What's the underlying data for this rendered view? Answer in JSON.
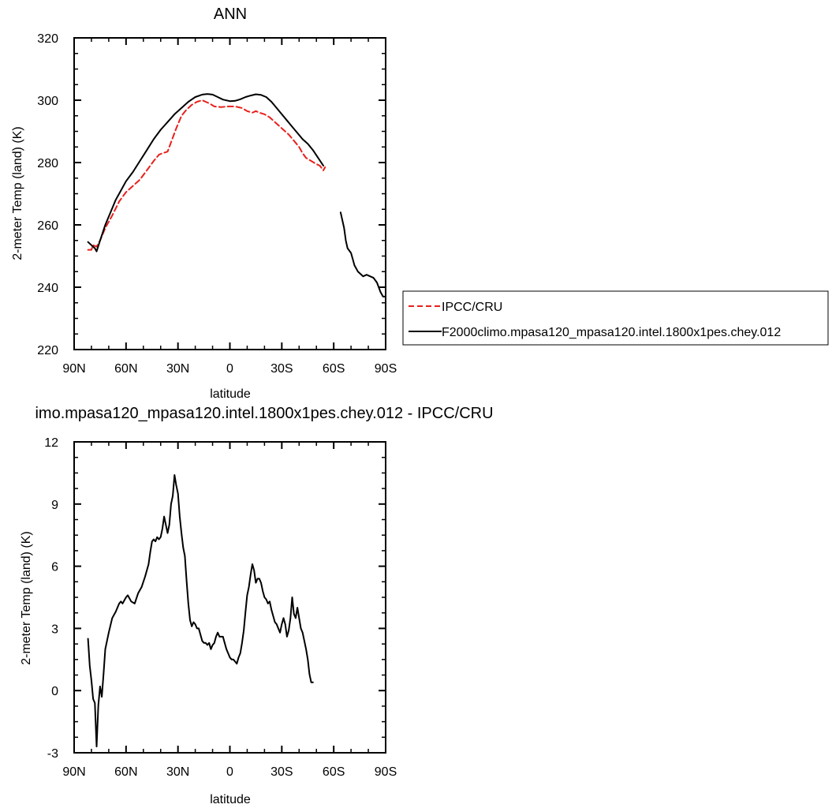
{
  "colors": {
    "obs": "#e8201c",
    "model": "#000000",
    "axis": "#000000",
    "background": "#ffffff"
  },
  "chart_data": [
    {
      "type": "line",
      "title": "ANN",
      "xlabel": "latitude",
      "ylabel": "2-meter Temp (land) (K)",
      "xlim": [
        90,
        -90
      ],
      "ylim": [
        220,
        320
      ],
      "xticks": [
        90,
        60,
        30,
        0,
        -30,
        -60,
        -90
      ],
      "xtick_labels": [
        "90N",
        "60N",
        "30N",
        "0",
        "30S",
        "60S",
        "90S"
      ],
      "yticks": [
        220,
        240,
        260,
        280,
        300,
        320
      ],
      "ytick_labels": [
        "220",
        "240",
        "260",
        "280",
        "300",
        "320"
      ],
      "grid": false,
      "legend_placement": "right, outside plot",
      "series": [
        {
          "name": "IPCC/CRU",
          "style": "dashed",
          "color": "#e8201c",
          "segments": [
            [
              [
                82,
                252
              ],
              [
                80,
                252
              ],
              [
                79,
                253.5
              ],
              [
                77,
                253
              ],
              [
                75,
                255
              ],
              [
                72,
                259
              ],
              [
                68,
                263
              ],
              [
                64,
                267.5
              ],
              [
                60,
                270.5
              ],
              [
                56,
                272.5
              ],
              [
                52,
                274.5
              ],
              [
                48,
                277.5
              ],
              [
                44,
                280.5
              ],
              [
                41,
                282.5
              ],
              [
                39,
                283
              ],
              [
                36,
                283.5
              ],
              [
                34,
                286.5
              ],
              [
                31,
                291
              ],
              [
                28,
                295
              ],
              [
                25,
                297
              ],
              [
                22,
                298.5
              ],
              [
                19,
                299.5
              ],
              [
                16,
                300
              ],
              [
                14,
                299.5
              ],
              [
                12,
                299
              ],
              [
                9,
                298
              ],
              [
                5,
                297.8
              ],
              [
                1,
                298
              ],
              [
                -3,
                298
              ],
              [
                -7,
                297.5
              ],
              [
                -10,
                296.5
              ],
              [
                -13,
                296
              ],
              [
                -15,
                296.5
              ],
              [
                -17,
                296
              ],
              [
                -20,
                295.5
              ],
              [
                -23,
                294.5
              ],
              [
                -26,
                293
              ],
              [
                -30,
                291
              ],
              [
                -34,
                289
              ],
              [
                -37,
                287
              ],
              [
                -40,
                285
              ],
              [
                -42,
                283
              ],
              [
                -44,
                281.5
              ],
              [
                -47,
                280.5
              ],
              [
                -50,
                279.5
              ],
              [
                -52,
                279
              ],
              [
                -54,
                277.5
              ],
              [
                -55,
                278.5
              ]
            ]
          ]
        },
        {
          "name": "F2000climo.mpasa120_mpasa120.intel.1800x1pes.chey.012",
          "style": "solid",
          "color": "#000000",
          "segments": [
            [
              [
                82,
                254.5
              ],
              [
                80,
                253.5
              ],
              [
                78,
                252.5
              ],
              [
                77,
                251.5
              ],
              [
                75,
                255
              ],
              [
                72,
                260
              ],
              [
                69,
                264
              ],
              [
                66,
                268
              ],
              [
                63,
                271
              ],
              [
                60,
                274
              ],
              [
                56,
                277
              ],
              [
                52,
                280.5
              ],
              [
                48,
                284
              ],
              [
                44,
                287.5
              ],
              [
                40,
                290.5
              ],
              [
                36,
                293
              ],
              [
                32,
                295.5
              ],
              [
                28,
                297.5
              ],
              [
                24,
                299.5
              ],
              [
                20,
                301
              ],
              [
                16,
                301.8
              ],
              [
                13,
                302
              ],
              [
                10,
                301.8
              ],
              [
                7,
                301
              ],
              [
                4,
                300.2
              ],
              [
                0,
                299.7
              ],
              [
                -3,
                299.8
              ],
              [
                -6,
                300.3
              ],
              [
                -9,
                301
              ],
              [
                -12,
                301.5
              ],
              [
                -15,
                301.9
              ],
              [
                -18,
                301.7
              ],
              [
                -21,
                301
              ],
              [
                -24,
                299.5
              ],
              [
                -27,
                297.5
              ],
              [
                -30,
                295.5
              ],
              [
                -33,
                293.5
              ],
              [
                -36,
                291.5
              ],
              [
                -39,
                289.5
              ],
              [
                -42,
                287.5
              ],
              [
                -45,
                286
              ],
              [
                -48,
                284
              ],
              [
                -51,
                281.5
              ],
              [
                -54,
                279
              ]
            ],
            [
              [
                -64,
                264
              ],
              [
                -66,
                259
              ],
              [
                -67,
                255
              ],
              [
                -68,
                252.5
              ],
              [
                -70,
                251
              ],
              [
                -71,
                249
              ],
              [
                -72,
                247
              ],
              [
                -73,
                246
              ],
              [
                -74,
                245
              ],
              [
                -76,
                244
              ],
              [
                -77,
                243.5
              ],
              [
                -79,
                244
              ],
              [
                -81,
                243.5
              ],
              [
                -83,
                243
              ],
              [
                -85,
                241.5
              ],
              [
                -87,
                238.5
              ],
              [
                -88.5,
                237
              ],
              [
                -90,
                237
              ]
            ]
          ]
        }
      ]
    },
    {
      "type": "line",
      "title": "imo.mpasa120_mpasa120.intel.1800x1pes.chey.012 - IPCC/CRU",
      "xlabel": "latitude",
      "ylabel": "2-meter Temp (land) (K)",
      "xlim": [
        90,
        -90
      ],
      "ylim": [
        -3,
        12
      ],
      "xticks": [
        90,
        60,
        30,
        0,
        -30,
        -60,
        -90
      ],
      "xtick_labels": [
        "90N",
        "60N",
        "30N",
        "0",
        "30S",
        "60S",
        "90S"
      ],
      "yticks": [
        -3,
        0,
        3,
        6,
        9,
        12
      ],
      "ytick_labels": [
        "-3",
        "0",
        "3",
        "6",
        "9",
        "12"
      ],
      "grid": false,
      "series": [
        {
          "style": "solid",
          "color": "#000000",
          "segments": [
            [
              [
                82,
                2.5
              ],
              [
                81,
                1.2
              ],
              [
                80,
                0.5
              ],
              [
                79,
                -0.4
              ],
              [
                78,
                -0.6
              ],
              [
                77,
                -2.7
              ],
              [
                76,
                -0.7
              ],
              [
                75,
                0.2
              ],
              [
                74,
                -0.3
              ],
              [
                73,
                0.8
              ],
              [
                72,
                2.0
              ],
              [
                70,
                2.8
              ],
              [
                68,
                3.5
              ],
              [
                66,
                3.8
              ],
              [
                64,
                4.2
              ],
              [
                63,
                4.3
              ],
              [
                62,
                4.2
              ],
              [
                60,
                4.5
              ],
              [
                59,
                4.6
              ],
              [
                57,
                4.3
              ],
              [
                55,
                4.2
              ],
              [
                53,
                4.7
              ],
              [
                51,
                5.0
              ],
              [
                49,
                5.5
              ],
              [
                47,
                6.1
              ],
              [
                46,
                6.7
              ],
              [
                45,
                7.2
              ],
              [
                44,
                7.3
              ],
              [
                43,
                7.2
              ],
              [
                42,
                7.4
              ],
              [
                41,
                7.3
              ],
              [
                40,
                7.4
              ],
              [
                39,
                7.8
              ],
              [
                38,
                8.4
              ],
              [
                37,
                8.0
              ],
              [
                36,
                7.6
              ],
              [
                35,
                8.0
              ],
              [
                34,
                9.0
              ],
              [
                33,
                9.4
              ],
              [
                32,
                10.4
              ],
              [
                31,
                9.9
              ],
              [
                30,
                9.5
              ],
              [
                29,
                8.4
              ],
              [
                28,
                7.6
              ],
              [
                27,
                6.9
              ],
              [
                26,
                6.5
              ],
              [
                25,
                5.3
              ],
              [
                24,
                4.2
              ],
              [
                23,
                3.4
              ],
              [
                22,
                3.1
              ],
              [
                21,
                3.3
              ],
              [
                20,
                3.2
              ],
              [
                19,
                3.0
              ],
              [
                18,
                3.0
              ],
              [
                17,
                2.7
              ],
              [
                16,
                2.4
              ],
              [
                15,
                2.3
              ],
              [
                14,
                2.3
              ],
              [
                13,
                2.2
              ],
              [
                12,
                2.3
              ],
              [
                11,
                2.0
              ],
              [
                10,
                2.2
              ],
              [
                9,
                2.3
              ],
              [
                8,
                2.6
              ],
              [
                7,
                2.8
              ],
              [
                6,
                2.6
              ],
              [
                5,
                2.6
              ],
              [
                4,
                2.6
              ],
              [
                3,
                2.3
              ],
              [
                2,
                2.0
              ],
              [
                1,
                1.8
              ],
              [
                0,
                1.6
              ],
              [
                -1,
                1.5
              ],
              [
                -2,
                1.5
              ],
              [
                -3,
                1.4
              ],
              [
                -4,
                1.3
              ],
              [
                -5,
                1.6
              ],
              [
                -6,
                1.8
              ],
              [
                -7,
                2.3
              ],
              [
                -8,
                2.9
              ],
              [
                -9,
                3.8
              ],
              [
                -10,
                4.6
              ],
              [
                -11,
                5.0
              ],
              [
                -12,
                5.6
              ],
              [
                -13,
                6.1
              ],
              [
                -14,
                5.8
              ],
              [
                -15,
                5.2
              ],
              [
                -16,
                5.4
              ],
              [
                -17,
                5.4
              ],
              [
                -18,
                5.2
              ],
              [
                -19,
                4.8
              ],
              [
                -20,
                4.5
              ],
              [
                -21,
                4.4
              ],
              [
                -22,
                4.2
              ],
              [
                -23,
                4.3
              ],
              [
                -24,
                3.9
              ],
              [
                -25,
                3.6
              ],
              [
                -26,
                3.3
              ],
              [
                -27,
                3.2
              ],
              [
                -28,
                3.0
              ],
              [
                -29,
                2.8
              ],
              [
                -30,
                3.2
              ],
              [
                -31,
                3.5
              ],
              [
                -32,
                3.2
              ],
              [
                -33,
                2.6
              ],
              [
                -34,
                2.9
              ],
              [
                -35,
                3.5
              ],
              [
                -36,
                4.5
              ],
              [
                -37,
                3.7
              ],
              [
                -38,
                3.5
              ],
              [
                -39,
                4.0
              ],
              [
                -40,
                3.5
              ],
              [
                -41,
                3.0
              ],
              [
                -42,
                2.8
              ],
              [
                -43,
                2.4
              ],
              [
                -44,
                2.0
              ],
              [
                -45,
                1.5
              ],
              [
                -46,
                0.8
              ],
              [
                -47,
                0.4
              ],
              [
                -48,
                0.4
              ]
            ]
          ]
        }
      ]
    }
  ]
}
